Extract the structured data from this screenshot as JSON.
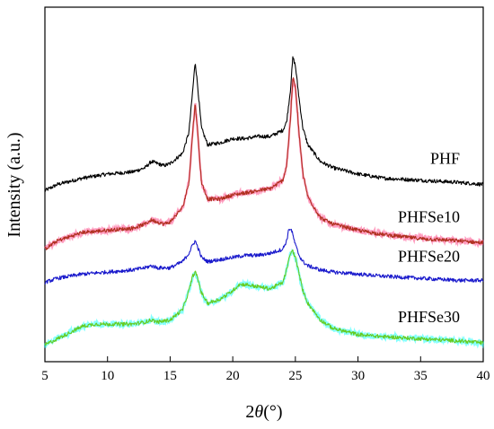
{
  "chart_data": {
    "type": "line",
    "xlabel_prefix": "2",
    "xlabel_symbol": "θ",
    "xlabel_suffix": "(°)",
    "ylabel": "Intensity (a.u.)",
    "xlim": [
      5,
      40
    ],
    "x_ticks": [
      5,
      10,
      15,
      20,
      25,
      30,
      35,
      40
    ],
    "y_ticks_shown": false,
    "grid": false,
    "legend": "inline labels right of each curve",
    "series": [
      {
        "name": "PHF",
        "color": "#000000",
        "highlight": "",
        "offset": 0.74,
        "x": [
          5,
          6,
          8,
          10,
          12,
          13,
          13.5,
          14,
          14.5,
          15,
          16,
          16.5,
          16.8,
          17.0,
          17.2,
          17.5,
          18,
          19,
          20,
          21,
          22,
          23,
          24,
          24.3,
          24.6,
          24.8,
          25.0,
          25.3,
          25.6,
          26,
          27,
          28,
          30,
          32,
          35,
          38,
          40
        ],
        "y": [
          0.0,
          0.03,
          0.06,
          0.08,
          0.09,
          0.11,
          0.14,
          0.13,
          0.12,
          0.13,
          0.18,
          0.28,
          0.48,
          0.62,
          0.5,
          0.3,
          0.22,
          0.23,
          0.25,
          0.25,
          0.26,
          0.26,
          0.29,
          0.33,
          0.48,
          0.64,
          0.6,
          0.44,
          0.3,
          0.22,
          0.14,
          0.11,
          0.08,
          0.06,
          0.05,
          0.04,
          0.03
        ]
      },
      {
        "name": "PHFSe10",
        "color": "#b03020",
        "highlight": "#ff4a8a",
        "offset": 0.46,
        "x": [
          5,
          6,
          8,
          10,
          12,
          13,
          13.5,
          14,
          14.5,
          15,
          16,
          16.5,
          16.8,
          17.0,
          17.2,
          17.5,
          18,
          19,
          20,
          21,
          22,
          23,
          24,
          24.3,
          24.6,
          24.8,
          25.0,
          25.3,
          25.6,
          26,
          27,
          28,
          30,
          32,
          35,
          38,
          40
        ],
        "y": [
          0.0,
          0.04,
          0.08,
          0.09,
          0.1,
          0.12,
          0.14,
          0.13,
          0.12,
          0.13,
          0.2,
          0.32,
          0.56,
          0.7,
          0.56,
          0.32,
          0.24,
          0.24,
          0.26,
          0.27,
          0.28,
          0.29,
          0.33,
          0.4,
          0.62,
          0.82,
          0.78,
          0.55,
          0.36,
          0.25,
          0.15,
          0.12,
          0.09,
          0.07,
          0.05,
          0.04,
          0.03
        ]
      },
      {
        "name": "PHFSe20",
        "color": "#1a1acc",
        "highlight": "",
        "offset": 0.3,
        "x": [
          5,
          6,
          8,
          10,
          12,
          13,
          13.5,
          14,
          15,
          16,
          16.5,
          16.8,
          17.0,
          17.2,
          17.5,
          18,
          19,
          20,
          21,
          22,
          23,
          24,
          24.3,
          24.5,
          24.7,
          25.0,
          25.3,
          25.6,
          26,
          27,
          28,
          30,
          32,
          35,
          38,
          40
        ],
        "y": [
          0.0,
          0.02,
          0.04,
          0.05,
          0.06,
          0.07,
          0.08,
          0.07,
          0.07,
          0.1,
          0.14,
          0.18,
          0.2,
          0.17,
          0.12,
          0.1,
          0.11,
          0.12,
          0.13,
          0.13,
          0.14,
          0.16,
          0.2,
          0.26,
          0.25,
          0.18,
          0.13,
          0.1,
          0.08,
          0.06,
          0.05,
          0.04,
          0.03,
          0.02,
          0.01,
          0.01
        ]
      },
      {
        "name": "PHFSe30",
        "color": "#66cc22",
        "highlight": "#22ffff",
        "offset": 0.0,
        "x": [
          5,
          6,
          7,
          8,
          9,
          10,
          11,
          12,
          13,
          13.5,
          14,
          15,
          16,
          16.5,
          16.8,
          17.0,
          17.2,
          17.5,
          18,
          19,
          20,
          20.5,
          21,
          22,
          23,
          24,
          24.3,
          24.6,
          24.8,
          25.0,
          25.3,
          25.6,
          26,
          27,
          28,
          30,
          32,
          35,
          38,
          40
        ],
        "y": [
          0.0,
          0.03,
          0.06,
          0.09,
          0.1,
          0.1,
          0.1,
          0.1,
          0.11,
          0.12,
          0.11,
          0.12,
          0.17,
          0.26,
          0.33,
          0.35,
          0.32,
          0.25,
          0.2,
          0.22,
          0.26,
          0.29,
          0.29,
          0.28,
          0.27,
          0.3,
          0.36,
          0.44,
          0.45,
          0.42,
          0.34,
          0.26,
          0.2,
          0.12,
          0.08,
          0.05,
          0.04,
          0.03,
          0.02,
          0.01
        ]
      }
    ]
  }
}
